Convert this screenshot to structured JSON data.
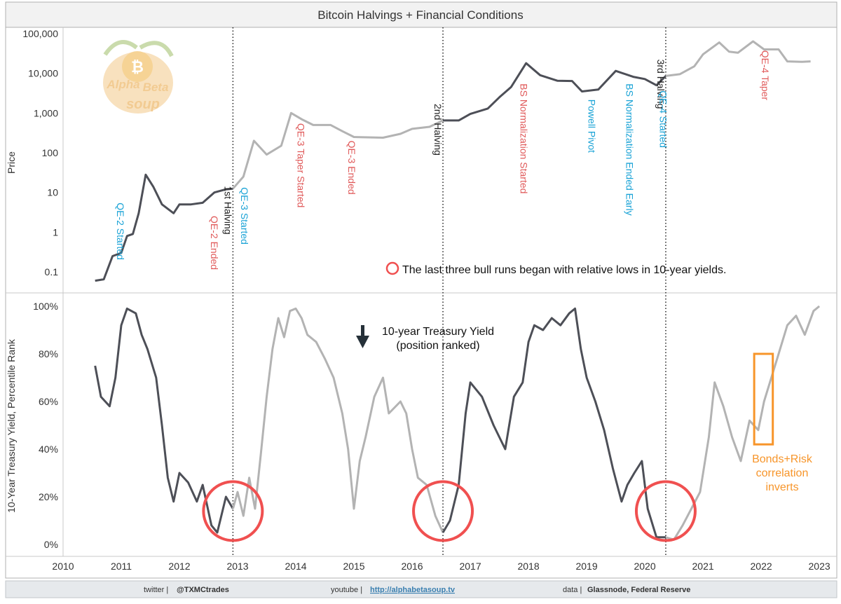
{
  "title": "Bitcoin Halvings + Financial Conditions",
  "footer": {
    "twitter_label": "twitter |",
    "twitter_handle": "@TXMCtrades",
    "youtube_label": "youtube |",
    "youtube_link": "http://alphabetasoup.tv",
    "data_label": "data |",
    "data_source": "Glassnode, Federal Reserve"
  },
  "logo": {
    "line1": "Alpha",
    "line2": "Beta",
    "line3": "soup"
  },
  "colors": {
    "dark_series": "#4d4f57",
    "light_series": "#b3b3b3",
    "blue_annotation": "#1aa3d6",
    "red_annotation": "#e05a5a",
    "circle": "#f05050",
    "orange_box": "#f7952a"
  },
  "chart_data": [
    {
      "type": "line",
      "title": "Bitcoin Halvings + Financial Conditions",
      "ylabel": "Price",
      "yscale": "log",
      "ylim": [
        0.05,
        120000
      ],
      "xlim": [
        2010.0,
        2023.3
      ],
      "yticks": [
        "0.1",
        "1",
        "10",
        "100",
        "1,000",
        "10,000",
        "100,000"
      ],
      "ytick_values": [
        0.1,
        1,
        10,
        100,
        1000,
        10000,
        100000
      ],
      "series": [
        {
          "name": "BTC Price",
          "points": [
            [
              2010.55,
              0.06
            ],
            [
              2010.7,
              0.065
            ],
            [
              2010.85,
              0.25
            ],
            [
              2011.0,
              0.3
            ],
            [
              2011.1,
              0.8
            ],
            [
              2011.2,
              0.9
            ],
            [
              2011.3,
              3.0
            ],
            [
              2011.42,
              28.0
            ],
            [
              2011.55,
              14.0
            ],
            [
              2011.7,
              5.0
            ],
            [
              2011.9,
              3.0
            ],
            [
              2012.0,
              5.0
            ],
            [
              2012.2,
              5.0
            ],
            [
              2012.4,
              5.5
            ],
            [
              2012.6,
              10.0
            ],
            [
              2012.8,
              12.0
            ],
            [
              2012.92,
              12.5
            ],
            [
              2013.1,
              25.0
            ],
            [
              2013.28,
              200.0
            ],
            [
              2013.5,
              90.0
            ],
            [
              2013.75,
              150.0
            ],
            [
              2013.92,
              1000.0
            ],
            [
              2014.1,
              700.0
            ],
            [
              2014.3,
              500.0
            ],
            [
              2014.6,
              500.0
            ],
            [
              2014.8,
              350.0
            ],
            [
              2015.0,
              250.0
            ],
            [
              2015.5,
              240.0
            ],
            [
              2015.8,
              300.0
            ],
            [
              2016.0,
              400.0
            ],
            [
              2016.3,
              450.0
            ],
            [
              2016.53,
              650.0
            ],
            [
              2016.8,
              650.0
            ],
            [
              2017.0,
              950.0
            ],
            [
              2017.3,
              1300.0
            ],
            [
              2017.5,
              2500.0
            ],
            [
              2017.7,
              4500.0
            ],
            [
              2017.96,
              18000.0
            ],
            [
              2018.2,
              9000.0
            ],
            [
              2018.5,
              6500.0
            ],
            [
              2018.75,
              6400.0
            ],
            [
              2018.92,
              3500.0
            ],
            [
              2019.2,
              3900.0
            ],
            [
              2019.5,
              11500.0
            ],
            [
              2019.8,
              8200.0
            ],
            [
              2020.0,
              7200.0
            ],
            [
              2020.2,
              5000.0
            ],
            [
              2020.36,
              8600.0
            ],
            [
              2020.6,
              9500.0
            ],
            [
              2020.85,
              15000.0
            ],
            [
              2021.0,
              30000.0
            ],
            [
              2021.28,
              60000.0
            ],
            [
              2021.45,
              35000.0
            ],
            [
              2021.6,
              33000.0
            ],
            [
              2021.86,
              64000.0
            ],
            [
              2022.05,
              40000.0
            ],
            [
              2022.3,
              40000.0
            ],
            [
              2022.45,
              20000.0
            ],
            [
              2022.7,
              19500.0
            ],
            [
              2022.85,
              20000.0
            ]
          ]
        }
      ],
      "halvings": [
        {
          "label": "1st Halving",
          "x": 2012.92
        },
        {
          "label": "2nd Halving",
          "x": 2016.53
        },
        {
          "label": "3rd Halving",
          "x": 2020.36
        }
      ],
      "annotations": [
        {
          "text": "QE-2 Started",
          "x": 2010.87,
          "anchor_y": 9.0,
          "color": "blue"
        },
        {
          "text": "QE-2 Ended",
          "x": 2012.48,
          "anchor_y": 4.2,
          "color": "red"
        },
        {
          "text": "QE-3 Started",
          "x": 2013.0,
          "anchor_y": 22.0,
          "color": "blue"
        },
        {
          "text": "QE-3 Taper Started",
          "x": 2013.97,
          "anchor_y": 900.0,
          "color": "red"
        },
        {
          "text": "QE-3 Ended",
          "x": 2014.84,
          "anchor_y": 330.0,
          "color": "red"
        },
        {
          "text": "BS Normalization Started",
          "x": 2017.8,
          "anchor_y": 9000.0,
          "color": "red"
        },
        {
          "text": "Powell Pivot",
          "x": 2018.97,
          "anchor_y": 3600.0,
          "color": "blue"
        },
        {
          "text": "BS Normalization Ended Early",
          "x": 2019.62,
          "anchor_y": 9000.0,
          "color": "blue"
        },
        {
          "text": "QE-4 Started",
          "x": 2020.2,
          "anchor_y": 6000.0,
          "color": "blue"
        },
        {
          "text": "QE-4 Taper",
          "x": 2021.95,
          "anchor_y": 62000.0,
          "color": "red"
        }
      ],
      "note": "The last three bull runs began with relative lows in 10-year yields."
    },
    {
      "type": "line",
      "ylabel": "10-Year Treasury Yield, Percentile Rank",
      "ylim": [
        0,
        100
      ],
      "xlim": [
        2010.0,
        2023.3
      ],
      "yticks": [
        "0%",
        "20%",
        "40%",
        "60%",
        "80%",
        "100%"
      ],
      "ytick_values": [
        0,
        20,
        40,
        60,
        80,
        100
      ],
      "xticks": [
        "2010",
        "2011",
        "2012",
        "2013",
        "2014",
        "2015",
        "2016",
        "2017",
        "2018",
        "2019",
        "2020",
        "2021",
        "2022",
        "2023"
      ],
      "xtick_values": [
        2010,
        2011,
        2012,
        2013,
        2014,
        2015,
        2016,
        2017,
        2018,
        2019,
        2020,
        2021,
        2022,
        2023
      ],
      "series": [
        {
          "name": "10-year Treasury Yield (position ranked)",
          "points": [
            [
              2010.55,
              75
            ],
            [
              2010.65,
              62
            ],
            [
              2010.8,
              58
            ],
            [
              2010.9,
              70
            ],
            [
              2011.0,
              92
            ],
            [
              2011.1,
              99
            ],
            [
              2011.25,
              97
            ],
            [
              2011.35,
              88
            ],
            [
              2011.45,
              82
            ],
            [
              2011.6,
              70
            ],
            [
              2011.7,
              50
            ],
            [
              2011.8,
              28
            ],
            [
              2011.9,
              18
            ],
            [
              2012.0,
              30
            ],
            [
              2012.15,
              26
            ],
            [
              2012.3,
              18
            ],
            [
              2012.4,
              25
            ],
            [
              2012.55,
              8
            ],
            [
              2012.65,
              5
            ],
            [
              2012.8,
              20
            ],
            [
              2012.92,
              15
            ],
            [
              2013.0,
              22
            ],
            [
              2013.1,
              12
            ],
            [
              2013.2,
              28
            ],
            [
              2013.3,
              15
            ],
            [
              2013.4,
              38
            ],
            [
              2013.5,
              62
            ],
            [
              2013.6,
              82
            ],
            [
              2013.7,
              95
            ],
            [
              2013.8,
              87
            ],
            [
              2013.9,
              98
            ],
            [
              2014.0,
              99
            ],
            [
              2014.1,
              95
            ],
            [
              2014.2,
              88
            ],
            [
              2014.35,
              85
            ],
            [
              2014.5,
              78
            ],
            [
              2014.65,
              70
            ],
            [
              2014.8,
              55
            ],
            [
              2014.9,
              40
            ],
            [
              2015.0,
              15
            ],
            [
              2015.1,
              35
            ],
            [
              2015.2,
              45
            ],
            [
              2015.35,
              62
            ],
            [
              2015.5,
              70
            ],
            [
              2015.6,
              55
            ],
            [
              2015.8,
              60
            ],
            [
              2015.9,
              55
            ],
            [
              2016.0,
              40
            ],
            [
              2016.1,
              28
            ],
            [
              2016.25,
              25
            ],
            [
              2016.4,
              12
            ],
            [
              2016.53,
              5
            ],
            [
              2016.65,
              10
            ],
            [
              2016.8,
              25
            ],
            [
              2016.92,
              55
            ],
            [
              2017.0,
              68
            ],
            [
              2017.2,
              62
            ],
            [
              2017.4,
              50
            ],
            [
              2017.5,
              45
            ],
            [
              2017.6,
              40
            ],
            [
              2017.75,
              62
            ],
            [
              2017.9,
              68
            ],
            [
              2018.0,
              85
            ],
            [
              2018.1,
              92
            ],
            [
              2018.25,
              90
            ],
            [
              2018.4,
              95
            ],
            [
              2018.55,
              92
            ],
            [
              2018.7,
              97
            ],
            [
              2018.8,
              99
            ],
            [
              2018.9,
              82
            ],
            [
              2019.0,
              70
            ],
            [
              2019.15,
              60
            ],
            [
              2019.3,
              48
            ],
            [
              2019.45,
              32
            ],
            [
              2019.6,
              18
            ],
            [
              2019.7,
              25
            ],
            [
              2019.82,
              30
            ],
            [
              2019.95,
              35
            ],
            [
              2020.05,
              15
            ],
            [
              2020.2,
              3
            ],
            [
              2020.36,
              3
            ],
            [
              2020.5,
              2
            ],
            [
              2020.65,
              8
            ],
            [
              2020.8,
              15
            ],
            [
              2020.95,
              22
            ],
            [
              2021.1,
              45
            ],
            [
              2021.2,
              68
            ],
            [
              2021.35,
              58
            ],
            [
              2021.5,
              45
            ],
            [
              2021.65,
              35
            ],
            [
              2021.8,
              52
            ],
            [
              2021.95,
              48
            ],
            [
              2022.05,
              60
            ],
            [
              2022.2,
              72
            ],
            [
              2022.3,
              80
            ],
            [
              2022.45,
              92
            ],
            [
              2022.6,
              96
            ],
            [
              2022.75,
              88
            ],
            [
              2022.9,
              98
            ],
            [
              2023.0,
              100
            ]
          ]
        }
      ],
      "series_label": [
        "10-year Treasury Yield",
        "(position ranked)"
      ],
      "circles": [
        {
          "x": 2012.92,
          "y": 14
        },
        {
          "x": 2016.53,
          "y": 14
        },
        {
          "x": 2020.36,
          "y": 14
        }
      ],
      "highlight_box": {
        "x0": 2021.88,
        "x1": 2022.2,
        "y0": 42,
        "y1": 80
      },
      "highlight_text": [
        "Bonds+Risk",
        "correlation",
        "inverts"
      ]
    }
  ]
}
